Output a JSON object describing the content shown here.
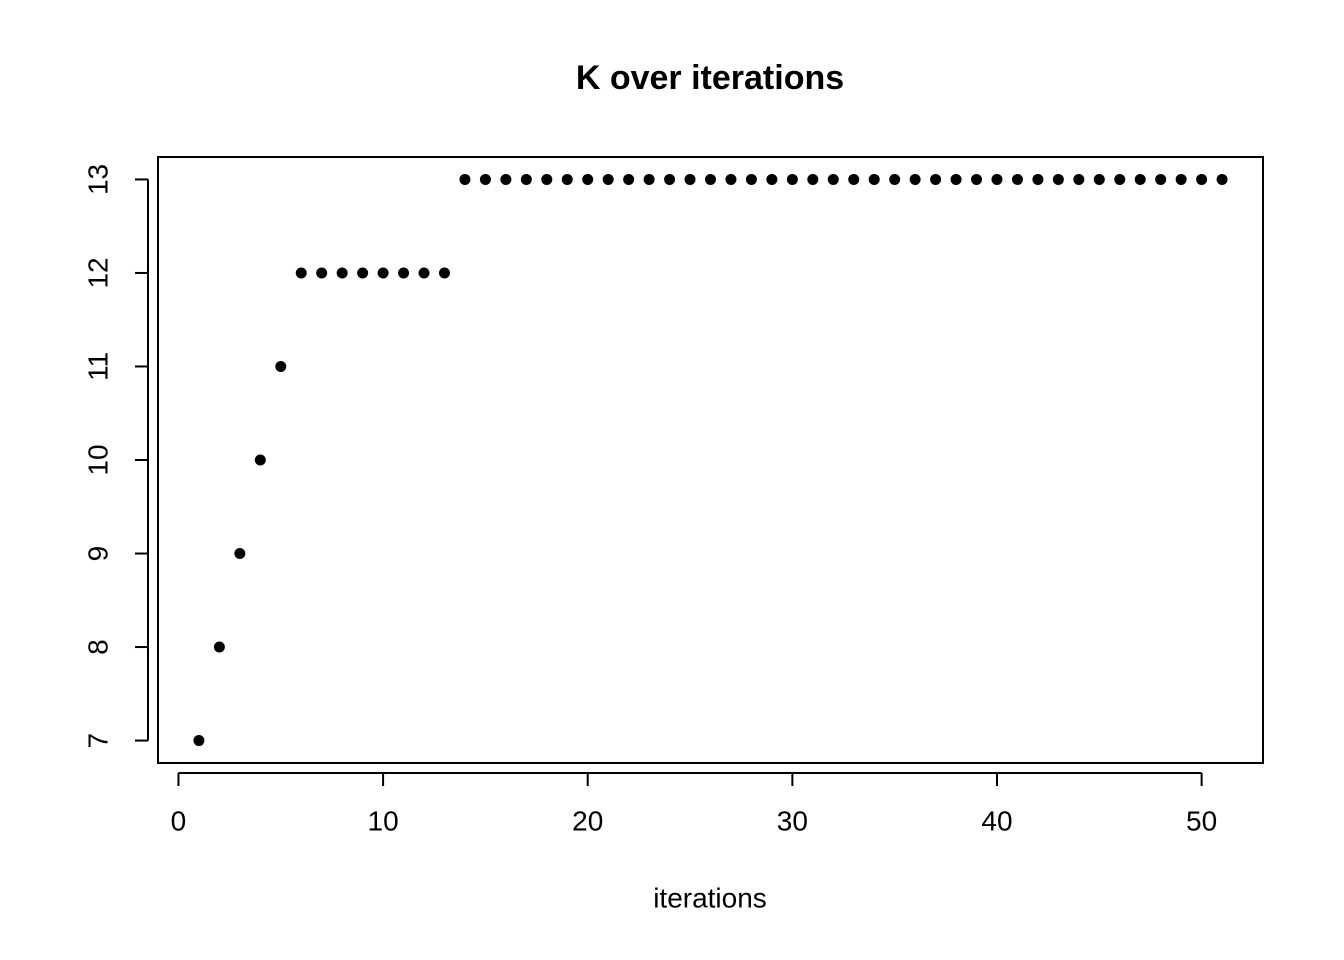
{
  "chart_data": {
    "type": "scatter",
    "title": "K over iterations",
    "x_label": "iterations",
    "x": [
      1,
      2,
      3,
      4,
      5,
      6,
      7,
      8,
      9,
      10,
      11,
      12,
      13,
      14,
      15,
      16,
      17,
      18,
      19,
      20,
      21,
      22,
      23,
      24,
      25,
      26,
      27,
      28,
      29,
      30,
      31,
      32,
      33,
      34,
      35,
      36,
      37,
      38,
      39,
      40,
      41,
      42,
      43,
      44,
      45,
      46,
      47,
      48,
      49,
      50,
      51
    ],
    "values": [
      7,
      8,
      9,
      10,
      11,
      12,
      12,
      12,
      12,
      12,
      12,
      12,
      12,
      13,
      13,
      13,
      13,
      13,
      13,
      13,
      13,
      13,
      13,
      13,
      13,
      13,
      13,
      13,
      13,
      13,
      13,
      13,
      13,
      13,
      13,
      13,
      13,
      13,
      13,
      13,
      13,
      13,
      13,
      13,
      13,
      13,
      13,
      13,
      13,
      13,
      13
    ],
    "color": "#000000",
    "xlim": [
      -1,
      53
    ],
    "xticks": [
      0,
      10,
      20,
      30,
      40,
      50
    ],
    "ylim": [
      6.76,
      13.24
    ],
    "yticks": [
      7,
      8,
      9,
      10,
      11,
      12,
      13
    ]
  }
}
